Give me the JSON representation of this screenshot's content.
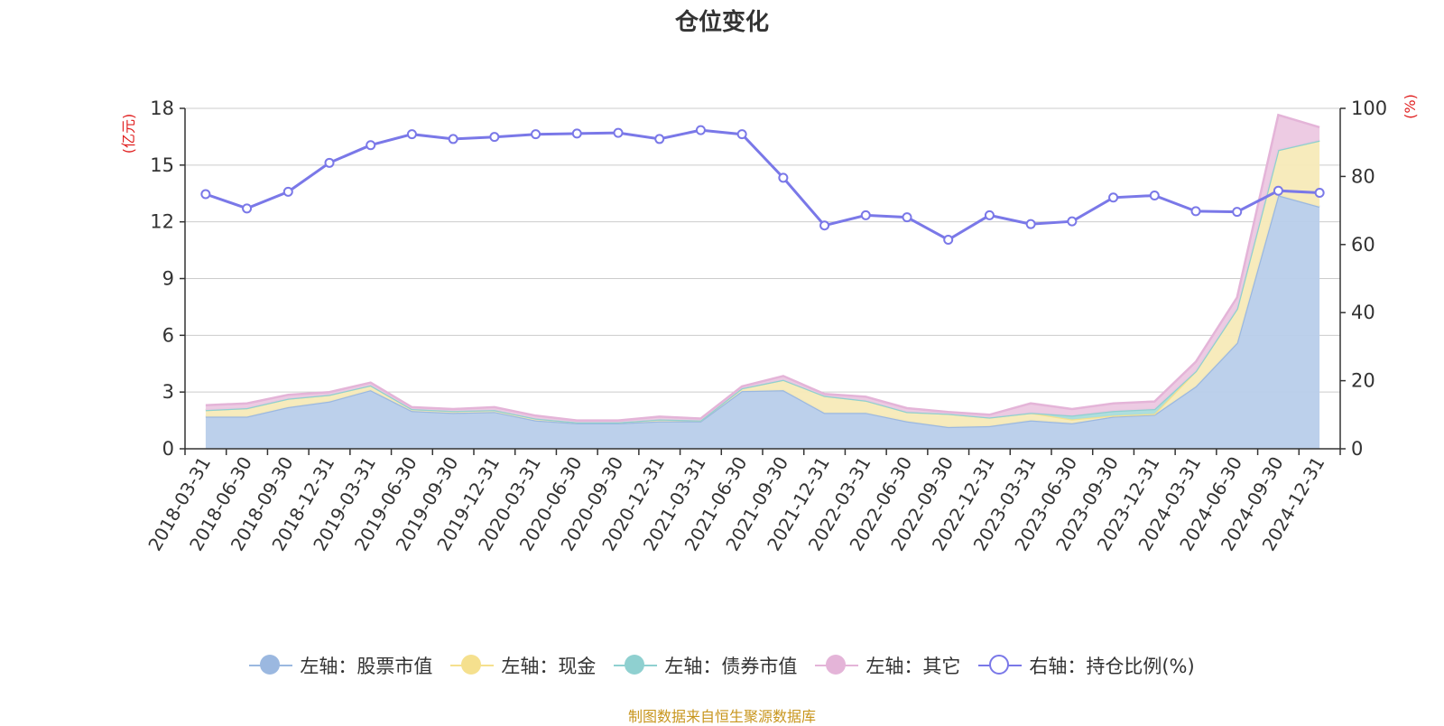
{
  "chart_data": {
    "type": "area",
    "title": "仓位变化",
    "categories": [
      "2018-03-31",
      "2018-06-30",
      "2018-09-30",
      "2018-12-31",
      "2019-03-31",
      "2019-06-30",
      "2019-09-30",
      "2019-12-31",
      "2020-03-31",
      "2020-06-30",
      "2020-09-30",
      "2020-12-31",
      "2021-03-31",
      "2021-06-30",
      "2021-09-30",
      "2021-12-31",
      "2022-03-31",
      "2022-06-30",
      "2022-09-30",
      "2022-12-31",
      "2023-03-31",
      "2023-06-30",
      "2023-09-30",
      "2023-12-31",
      "2024-03-31",
      "2024-06-30",
      "2024-09-30",
      "2024-12-31"
    ],
    "left_axis": {
      "label": "(亿元)",
      "ylim": [
        0,
        18
      ],
      "ticks": [
        0,
        3,
        6,
        9,
        12,
        15,
        18
      ]
    },
    "right_axis": {
      "label": "(%)",
      "ylim": [
        0,
        100
      ],
      "ticks": [
        0,
        20,
        40,
        60,
        80,
        100
      ]
    },
    "stack_series": [
      {
        "name": "左轴：股票市值",
        "color": "#9bb8e0",
        "fill": "#b8cdea",
        "values": [
          1.7,
          1.7,
          2.2,
          2.5,
          3.1,
          2.0,
          1.9,
          1.95,
          1.5,
          1.35,
          1.35,
          1.45,
          1.45,
          3.05,
          3.1,
          1.9,
          1.9,
          1.45,
          1.15,
          1.2,
          1.5,
          1.35,
          1.7,
          1.8,
          3.3,
          5.6,
          13.4,
          12.8
        ]
      },
      {
        "name": "左轴：现金",
        "color": "#f5e08e",
        "fill": "#f7eab8",
        "values": [
          0.35,
          0.45,
          0.45,
          0.35,
          0.25,
          0.1,
          0.1,
          0.1,
          0.1,
          0.05,
          0.05,
          0.1,
          0.05,
          0.15,
          0.55,
          0.9,
          0.65,
          0.5,
          0.7,
          0.45,
          0.4,
          0.2,
          0.05,
          0.05,
          0.8,
          1.8,
          2.4,
          3.5
        ]
      },
      {
        "name": "左轴：债券市值",
        "color": "#8fd0d0",
        "fill": "#a9dcdc",
        "values": [
          0,
          0,
          0,
          0,
          0,
          0,
          0,
          0,
          0,
          0,
          0,
          0,
          0,
          0,
          0,
          0,
          0,
          0,
          0,
          0,
          0,
          0.2,
          0.25,
          0.25,
          0,
          0,
          0,
          0
        ]
      },
      {
        "name": "左轴：其它",
        "color": "#e4b4d8",
        "fill": "#ecc8e2",
        "values": [
          0.25,
          0.25,
          0.2,
          0.15,
          0.15,
          0.1,
          0.1,
          0.15,
          0.15,
          0.1,
          0.1,
          0.15,
          0.1,
          0.1,
          0.2,
          0.1,
          0.2,
          0.2,
          0.1,
          0.15,
          0.5,
          0.35,
          0.4,
          0.4,
          0.5,
          0.6,
          1.85,
          0.7
        ]
      }
    ],
    "line_series": {
      "name": "右轴：持仓比例(%)",
      "color": "#7a78e8",
      "values": [
        74.8,
        70.6,
        75.5,
        84.0,
        89.2,
        92.4,
        91.0,
        91.6,
        92.4,
        92.6,
        92.8,
        91.0,
        93.6,
        92.4,
        79.6,
        65.6,
        68.6,
        68.0,
        61.4,
        68.6,
        66.0,
        66.8,
        73.8,
        74.4,
        69.8,
        69.6,
        75.8,
        75.2
      ]
    },
    "grid": true,
    "legend_position": "bottom"
  },
  "legend": {
    "items": [
      {
        "label": "左轴：股票市值",
        "color": "#9bb8e0",
        "hollow": false
      },
      {
        "label": "左轴：现金",
        "color": "#f5e08e",
        "hollow": false
      },
      {
        "label": "左轴：债券市值",
        "color": "#8fd0d0",
        "hollow": false
      },
      {
        "label": "左轴：其它",
        "color": "#e4b4d8",
        "hollow": false
      },
      {
        "label": "右轴：持仓比例(%)",
        "color": "#7a78e8",
        "hollow": true
      }
    ]
  },
  "footer": {
    "source": "制图数据来自恒生聚源数据库"
  },
  "colors": {
    "axis_label": "#e02020",
    "grid": "#cccccc",
    "axis": "#333333",
    "text": "#333333"
  }
}
